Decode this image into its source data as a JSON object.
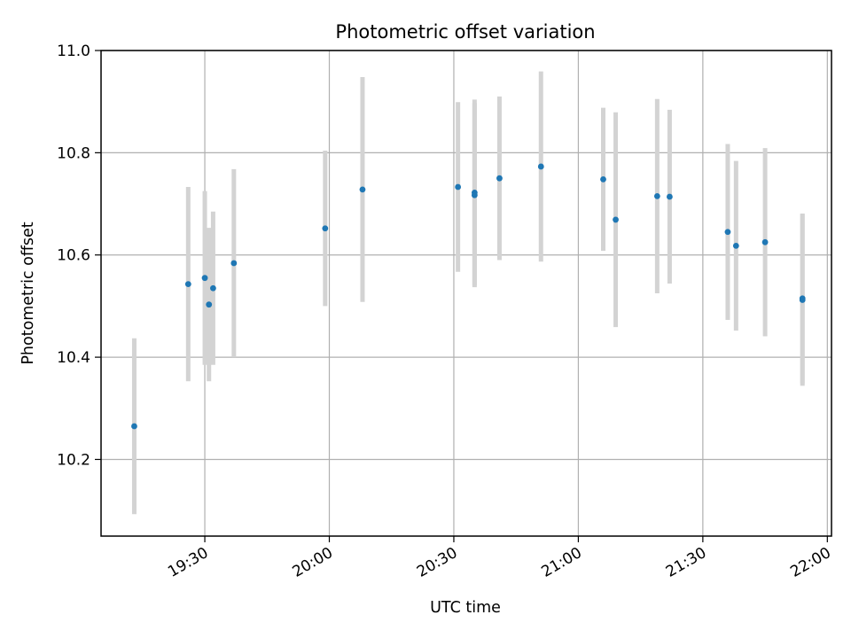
{
  "chart_data": {
    "type": "scatter",
    "title": "Photometric offset variation",
    "xlabel": "UTC time",
    "ylabel": "Photometric offset",
    "x_axis_type": "time",
    "xlim": [
      "19:05",
      "22:01"
    ],
    "ylim": [
      10.05,
      11.0
    ],
    "xticks": [
      "19:30",
      "20:00",
      "20:30",
      "21:00",
      "21:30",
      "22:00"
    ],
    "yticks": [
      "10.2",
      "10.4",
      "10.6",
      "10.8",
      "11.0"
    ],
    "grid": true,
    "point_color": "#1f77b4",
    "errorbar_color": "#d3d3d3",
    "points": [
      {
        "x": "19:13",
        "y": 10.265,
        "err": 0.172
      },
      {
        "x": "19:26",
        "y": 10.543,
        "err": 0.19
      },
      {
        "x": "19:30",
        "y": 10.555,
        "err": 0.17
      },
      {
        "x": "19:31",
        "y": 10.503,
        "err": 0.15
      },
      {
        "x": "19:32",
        "y": 10.535,
        "err": 0.15
      },
      {
        "x": "19:37",
        "y": 10.584,
        "err": 0.184
      },
      {
        "x": "19:59",
        "y": 10.652,
        "err": 0.152
      },
      {
        "x": "20:08",
        "y": 10.728,
        "err": 0.22
      },
      {
        "x": "20:31",
        "y": 10.733,
        "err": 0.166
      },
      {
        "x": "20:35",
        "y": 10.722,
        "err": 0.182
      },
      {
        "x": "20:35",
        "y": 10.717,
        "err": 0.18
      },
      {
        "x": "20:41",
        "y": 10.75,
        "err": 0.16
      },
      {
        "x": "20:51",
        "y": 10.773,
        "err": 0.186
      },
      {
        "x": "21:06",
        "y": 10.748,
        "err": 0.14
      },
      {
        "x": "21:09",
        "y": 10.669,
        "err": 0.21
      },
      {
        "x": "21:19",
        "y": 10.715,
        "err": 0.19
      },
      {
        "x": "21:22",
        "y": 10.714,
        "err": 0.17
      },
      {
        "x": "21:36",
        "y": 10.645,
        "err": 0.172
      },
      {
        "x": "21:38",
        "y": 10.618,
        "err": 0.166
      },
      {
        "x": "21:45",
        "y": 10.625,
        "err": 0.184
      },
      {
        "x": "21:54",
        "y": 10.512,
        "err": 0.168
      },
      {
        "x": "21:54",
        "y": 10.515,
        "err": 0.166
      }
    ]
  }
}
